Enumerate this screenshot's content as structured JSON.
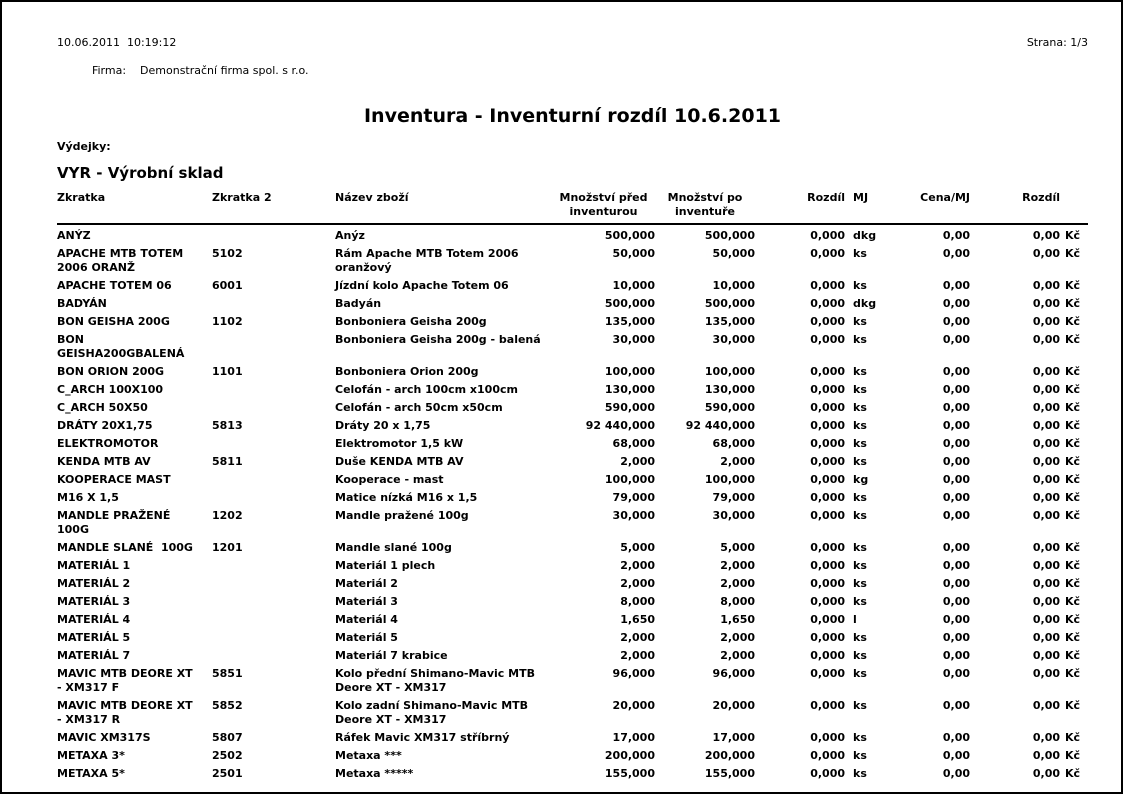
{
  "page": {
    "datetime": "10.06.2011  10:19:12",
    "company_label": "Firma:",
    "company_name": "Demonstrační firma spol. s r.o.",
    "page_number": "Strana: 1/3",
    "title": "Inventura - Inventurní rozdíl 10.6.2011",
    "section_label": "Výdejky:",
    "warehouse": "VYR - Výrobní sklad"
  },
  "table": {
    "headers": {
      "zkratka": "Zkratka",
      "zkratka2": "Zkratka 2",
      "nazev": "Název zboží",
      "before": "Množství před\ninventurou",
      "after": "Množství po\ninventuře",
      "diff": "Rozdíl",
      "mj": "MJ",
      "price": "Cena/MJ",
      "diff2": "Rozdíl",
      "cur": ""
    },
    "rows": [
      {
        "z": "ANÝZ",
        "z2": "",
        "n": "Anýz",
        "before": "500,000",
        "after": "500,000",
        "diff": "0,000",
        "mj": "dkg",
        "price": "0,00",
        "diff2": "0,00",
        "cur": "Kč"
      },
      {
        "z": "APACHE MTB TOTEM\n2006 ORANŽ",
        "z2": "5102",
        "n": "Rám Apache MTB Totem 2006\noranžový",
        "before": "50,000",
        "after": "50,000",
        "diff": "0,000",
        "mj": "ks",
        "price": "0,00",
        "diff2": "0,00",
        "cur": "Kč"
      },
      {
        "z": "APACHE TOTEM 06",
        "z2": "6001",
        "n": "Jízdní kolo Apache Totem 06",
        "before": "10,000",
        "after": "10,000",
        "diff": "0,000",
        "mj": "ks",
        "price": "0,00",
        "diff2": "0,00",
        "cur": "Kč"
      },
      {
        "z": "BADYÁN",
        "z2": "",
        "n": "Badyán",
        "before": "500,000",
        "after": "500,000",
        "diff": "0,000",
        "mj": "dkg",
        "price": "0,00",
        "diff2": "0,00",
        "cur": "Kč"
      },
      {
        "z": "BON GEISHA 200G",
        "z2": "1102",
        "n": "Bonboniera Geisha 200g",
        "before": "135,000",
        "after": "135,000",
        "diff": "0,000",
        "mj": "ks",
        "price": "0,00",
        "diff2": "0,00",
        "cur": "Kč"
      },
      {
        "z": "BON\nGEISHA200GBALENÁ",
        "z2": "",
        "n": "Bonboniera Geisha 200g - balená",
        "before": "30,000",
        "after": "30,000",
        "diff": "0,000",
        "mj": "ks",
        "price": "0,00",
        "diff2": "0,00",
        "cur": "Kč"
      },
      {
        "z": "BON ORION 200G",
        "z2": "1101",
        "n": "Bonboniera Orion 200g",
        "before": "100,000",
        "after": "100,000",
        "diff": "0,000",
        "mj": "ks",
        "price": "0,00",
        "diff2": "0,00",
        "cur": "Kč"
      },
      {
        "z": "C_ARCH 100X100",
        "z2": "",
        "n": "Celofán - arch 100cm x100cm",
        "before": "130,000",
        "after": "130,000",
        "diff": "0,000",
        "mj": "ks",
        "price": "0,00",
        "diff2": "0,00",
        "cur": "Kč"
      },
      {
        "z": "C_ARCH 50X50",
        "z2": "",
        "n": "Celofán - arch 50cm x50cm",
        "before": "590,000",
        "after": "590,000",
        "diff": "0,000",
        "mj": "ks",
        "price": "0,00",
        "diff2": "0,00",
        "cur": "Kč"
      },
      {
        "z": "DRÁTY 20X1,75",
        "z2": "5813",
        "n": "Dráty 20 x 1,75",
        "before": "92 440,000",
        "after": "92 440,000",
        "diff": "0,000",
        "mj": "ks",
        "price": "0,00",
        "diff2": "0,00",
        "cur": "Kč"
      },
      {
        "z": "ELEKTROMOTOR",
        "z2": "",
        "n": "Elektromotor 1,5 kW",
        "before": "68,000",
        "after": "68,000",
        "diff": "0,000",
        "mj": "ks",
        "price": "0,00",
        "diff2": "0,00",
        "cur": "Kč"
      },
      {
        "z": "KENDA MTB AV",
        "z2": "5811",
        "n": "Duše KENDA MTB AV",
        "before": "2,000",
        "after": "2,000",
        "diff": "0,000",
        "mj": "ks",
        "price": "0,00",
        "diff2": "0,00",
        "cur": "Kč"
      },
      {
        "z": "KOOPERACE MAST",
        "z2": "",
        "n": "Kooperace - mast",
        "before": "100,000",
        "after": "100,000",
        "diff": "0,000",
        "mj": "kg",
        "price": "0,00",
        "diff2": "0,00",
        "cur": "Kč"
      },
      {
        "z": "M16 X 1,5",
        "z2": "",
        "n": "Matice nízká M16 x 1,5",
        "before": "79,000",
        "after": "79,000",
        "diff": "0,000",
        "mj": "ks",
        "price": "0,00",
        "diff2": "0,00",
        "cur": "Kč"
      },
      {
        "z": "MANDLE PRAŽENÉ\n100G",
        "z2": "1202",
        "n": "Mandle pražené 100g",
        "before": "30,000",
        "after": "30,000",
        "diff": "0,000",
        "mj": "ks",
        "price": "0,00",
        "diff2": "0,00",
        "cur": "Kč"
      },
      {
        "z": "MANDLE SLANÉ  100G",
        "z2": "1201",
        "n": "Mandle slané 100g",
        "before": "5,000",
        "after": "5,000",
        "diff": "0,000",
        "mj": "ks",
        "price": "0,00",
        "diff2": "0,00",
        "cur": "Kč"
      },
      {
        "z": "MATERIÁL 1",
        "z2": "",
        "n": "Materiál 1 plech",
        "before": "2,000",
        "after": "2,000",
        "diff": "0,000",
        "mj": "ks",
        "price": "0,00",
        "diff2": "0,00",
        "cur": "Kč"
      },
      {
        "z": "MATERIÁL 2",
        "z2": "",
        "n": "Materiál 2",
        "before": "2,000",
        "after": "2,000",
        "diff": "0,000",
        "mj": "ks",
        "price": "0,00",
        "diff2": "0,00",
        "cur": "Kč"
      },
      {
        "z": "MATERIÁL 3",
        "z2": "",
        "n": "Materiál 3",
        "before": "8,000",
        "after": "8,000",
        "diff": "0,000",
        "mj": "ks",
        "price": "0,00",
        "diff2": "0,00",
        "cur": "Kč"
      },
      {
        "z": "MATERIÁL 4",
        "z2": "",
        "n": "Materiál 4",
        "before": "1,650",
        "after": "1,650",
        "diff": "0,000",
        "mj": "l",
        "price": "0,00",
        "diff2": "0,00",
        "cur": "Kč"
      },
      {
        "z": "MATERIÁL 5",
        "z2": "",
        "n": "Materiál 5",
        "before": "2,000",
        "after": "2,000",
        "diff": "0,000",
        "mj": "ks",
        "price": "0,00",
        "diff2": "0,00",
        "cur": "Kč"
      },
      {
        "z": "MATERIÁL 7",
        "z2": "",
        "n": "Materiál 7 krabice",
        "before": "2,000",
        "after": "2,000",
        "diff": "0,000",
        "mj": "ks",
        "price": "0,00",
        "diff2": "0,00",
        "cur": "Kč"
      },
      {
        "z": "MAVIC MTB DEORE XT\n- XM317 F",
        "z2": "5851",
        "n": "Kolo přední Shimano-Mavic MTB\nDeore XT - XM317",
        "before": "96,000",
        "after": "96,000",
        "diff": "0,000",
        "mj": "ks",
        "price": "0,00",
        "diff2": "0,00",
        "cur": "Kč"
      },
      {
        "z": "MAVIC MTB DEORE XT\n- XM317 R",
        "z2": "5852",
        "n": "Kolo zadní Shimano-Mavic MTB\nDeore XT - XM317",
        "before": "20,000",
        "after": "20,000",
        "diff": "0,000",
        "mj": "ks",
        "price": "0,00",
        "diff2": "0,00",
        "cur": "Kč"
      },
      {
        "z": "MAVIC XM317S",
        "z2": "5807",
        "n": "Ráfek Mavic XM317 stříbrný",
        "before": "17,000",
        "after": "17,000",
        "diff": "0,000",
        "mj": "ks",
        "price": "0,00",
        "diff2": "0,00",
        "cur": "Kč"
      },
      {
        "z": "METAXA 3*",
        "z2": "2502",
        "n": "Metaxa ***",
        "before": "200,000",
        "after": "200,000",
        "diff": "0,000",
        "mj": "ks",
        "price": "0,00",
        "diff2": "0,00",
        "cur": "Kč"
      },
      {
        "z": "METAXA 5*",
        "z2": "2501",
        "n": "Metaxa *****",
        "before": "155,000",
        "after": "155,000",
        "diff": "0,000",
        "mj": "ks",
        "price": "0,00",
        "diff2": "0,00",
        "cur": "Kč"
      }
    ]
  }
}
